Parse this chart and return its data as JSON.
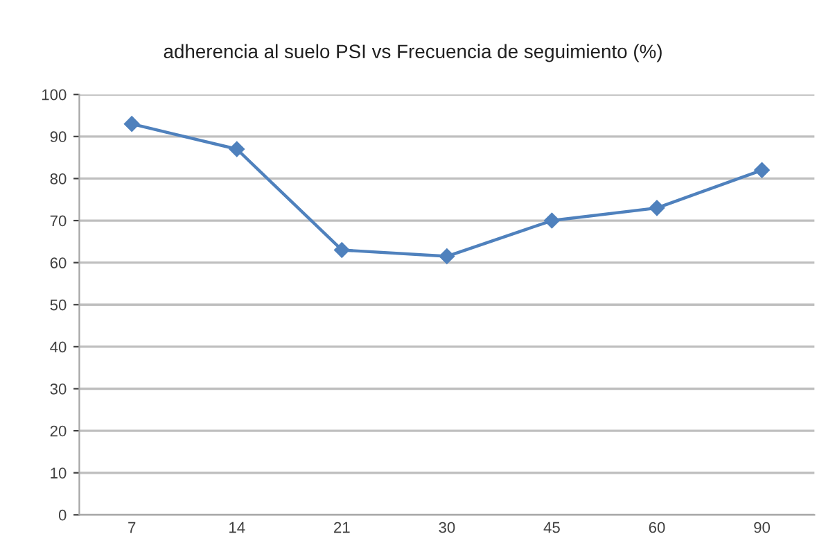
{
  "chart_data": {
    "type": "line",
    "title": "adherencia al suelo PSI vs Frecuencia de seguimiento (%)",
    "categories": [
      "7",
      "14",
      "21",
      "30",
      "45",
      "60",
      "90"
    ],
    "series": [
      {
        "color": "#4f81bd",
        "values": [
          93,
          87,
          63,
          61.5,
          70,
          73,
          82
        ]
      }
    ],
    "ylim": [
      0,
      100
    ],
    "yticks": [
      0,
      10,
      20,
      30,
      40,
      50,
      60,
      70,
      80,
      90,
      100
    ],
    "grid": "y",
    "marker": "diamond",
    "line_style": "solid"
  }
}
